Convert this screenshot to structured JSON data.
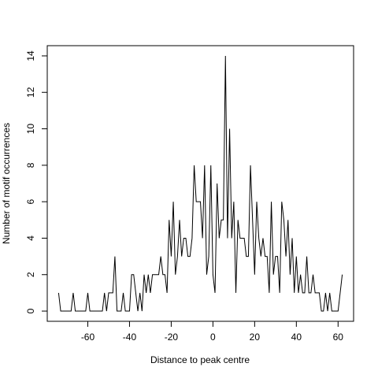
{
  "chart_data": {
    "type": "line",
    "xlabel": "Distance to peak centre",
    "ylabel": "Number of motif occurrences",
    "x": [
      -74,
      -73,
      -72,
      -71,
      -70,
      -69,
      -68,
      -67,
      -66,
      -65,
      -64,
      -63,
      -62,
      -61,
      -60,
      -59,
      -58,
      -57,
      -56,
      -55,
      -54,
      -53,
      -52,
      -51,
      -50,
      -49,
      -48,
      -47,
      -46,
      -45,
      -44,
      -43,
      -42,
      -41,
      -40,
      -39,
      -38,
      -37,
      -36,
      -35,
      -34,
      -33,
      -32,
      -31,
      -30,
      -29,
      -28,
      -27,
      -26,
      -25,
      -24,
      -23,
      -22,
      -21,
      -20,
      -19,
      -18,
      -17,
      -16,
      -15,
      -14,
      -13,
      -12,
      -11,
      -10,
      -9,
      -8,
      -7,
      -6,
      -5,
      -4,
      -3,
      -2,
      -1,
      0,
      1,
      2,
      3,
      4,
      5,
      6,
      7,
      8,
      9,
      10,
      11,
      12,
      13,
      14,
      15,
      16,
      17,
      18,
      19,
      20,
      21,
      22,
      23,
      24,
      25,
      26,
      27,
      28,
      29,
      30,
      31,
      32,
      33,
      34,
      35,
      36,
      37,
      38,
      39,
      40,
      41,
      42,
      43,
      44,
      45,
      46,
      47,
      48,
      49,
      50,
      51,
      52,
      53,
      54,
      55,
      56,
      57,
      58,
      59,
      60,
      61,
      62
    ],
    "values": [
      1,
      0,
      0,
      0,
      0,
      0,
      0,
      1,
      0,
      0,
      0,
      0,
      0,
      0,
      1,
      0,
      0,
      0,
      0,
      0,
      0,
      0,
      1,
      0,
      1,
      1,
      1,
      3,
      0,
      0,
      0,
      1,
      0,
      0,
      0,
      2,
      2,
      1,
      0,
      1,
      0,
      2,
      1,
      2,
      1,
      2,
      2,
      2,
      2,
      3,
      2,
      2,
      1,
      5,
      3,
      6,
      2,
      3,
      5,
      3,
      4,
      4,
      3,
      3,
      4,
      8,
      6,
      6,
      6,
      4,
      8,
      2,
      3,
      8,
      2,
      1,
      7,
      4,
      5,
      5,
      14,
      4,
      10,
      4,
      6,
      1,
      5,
      4,
      4,
      4,
      3,
      3,
      8,
      5,
      2,
      6,
      4,
      3,
      4,
      3,
      3,
      1,
      6,
      2,
      3,
      3,
      1,
      6,
      5,
      3,
      5,
      2,
      4,
      1,
      3,
      1,
      2,
      1,
      1,
      3,
      1,
      1,
      2,
      1,
      1,
      1,
      0,
      0,
      1,
      0,
      1,
      0,
      0,
      0,
      0,
      1,
      2
    ],
    "color": "#000000",
    "xlim": [
      -79.44,
      67.44
    ],
    "xticks": [
      -60,
      -40,
      -20,
      0,
      20,
      40,
      60
    ],
    "ylim": [
      -0.56,
      14.56
    ],
    "yticks": [
      0,
      2,
      4,
      6,
      8,
      10,
      12,
      14
    ]
  }
}
